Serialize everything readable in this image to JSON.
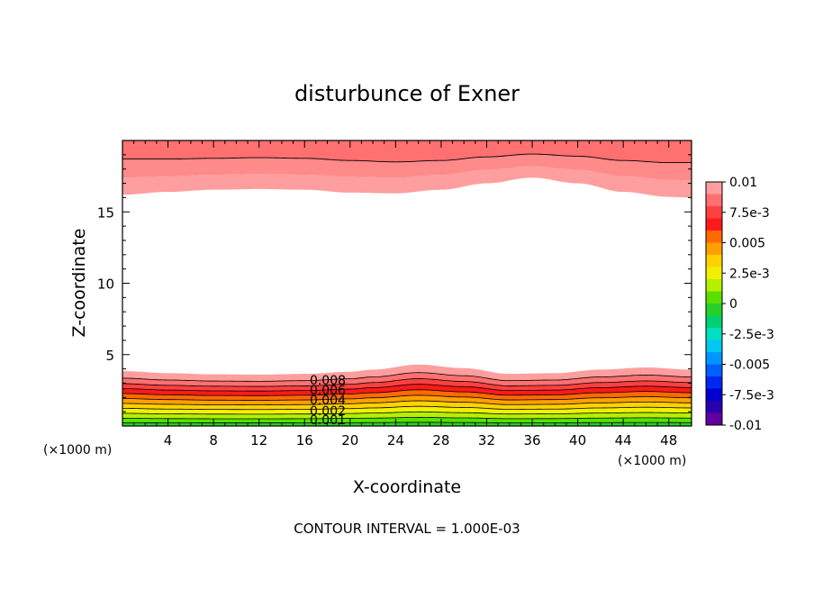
{
  "chart_data": {
    "type": "heatmap",
    "subtype": "filled-contour",
    "title": "disturbunce of Exner",
    "xlabel": "X-coordinate",
    "ylabel": "Z-coordinate",
    "x_unit_left": "(×1000 m)",
    "x_unit_right": "(×1000 m)",
    "xlim": [
      0,
      50
    ],
    "ylim": [
      0,
      20
    ],
    "x_ticks": [
      "4",
      "8",
      "12",
      "16",
      "20",
      "24",
      "28",
      "32",
      "36",
      "40",
      "44",
      "48"
    ],
    "y_ticks": [
      "5",
      "10",
      "15"
    ],
    "footer": "CONTOUR INTERVAL = 1.000E-03",
    "colorbar": {
      "labels": [
        "0.01",
        "7.5e-3",
        "0.005",
        "2.5e-3",
        "0",
        "-2.5e-3",
        "-0.005",
        "-7.5e-3",
        "-0.01"
      ],
      "levels": [
        {
          "min": 0.009,
          "max": 0.01,
          "color": "#ff9e9e"
        },
        {
          "min": 0.008,
          "max": 0.009,
          "color": "#ff7070"
        },
        {
          "min": 0.007,
          "max": 0.008,
          "color": "#ff4040"
        },
        {
          "min": 0.006,
          "max": 0.007,
          "color": "#ff1a1a"
        },
        {
          "min": 0.005,
          "max": 0.006,
          "color": "#ff6a00"
        },
        {
          "min": 0.004,
          "max": 0.005,
          "color": "#ffa000"
        },
        {
          "min": 0.003,
          "max": 0.004,
          "color": "#ffd200"
        },
        {
          "min": 0.002,
          "max": 0.003,
          "color": "#f0f000"
        },
        {
          "min": 0.001,
          "max": 0.002,
          "color": "#b4f000"
        },
        {
          "min": 0.0,
          "max": 0.001,
          "color": "#5ae000"
        },
        {
          "min": -0.001,
          "max": 0.0,
          "color": "#26d026"
        },
        {
          "min": -0.002,
          "max": -0.001,
          "color": "#00d070"
        },
        {
          "min": -0.003,
          "max": -0.002,
          "color": "#00e0c0"
        },
        {
          "min": -0.004,
          "max": -0.003,
          "color": "#00c8f0"
        },
        {
          "min": -0.005,
          "max": -0.004,
          "color": "#0096ff"
        },
        {
          "min": -0.006,
          "max": -0.005,
          "color": "#0060ff"
        },
        {
          "min": -0.007,
          "max": -0.006,
          "color": "#0028f0"
        },
        {
          "min": -0.008,
          "max": -0.007,
          "color": "#0000d0"
        },
        {
          "min": -0.009,
          "max": -0.008,
          "color": "#2800b0"
        },
        {
          "min": -0.01,
          "max": -0.009,
          "color": "#6000a0"
        }
      ]
    },
    "bottom_layer": {
      "labels": [
        "0.008",
        "0.006",
        "0.004",
        "0.002",
        "0.001"
      ],
      "profile_x": [
        0,
        4,
        8,
        12,
        16,
        20,
        22,
        26,
        30,
        34,
        38,
        42,
        46,
        50
      ],
      "profile_top_z": [
        3.85,
        3.7,
        3.62,
        3.6,
        3.65,
        3.8,
        3.95,
        4.3,
        4.05,
        3.65,
        3.7,
        3.95,
        4.1,
        3.95
      ],
      "bands": [
        {
          "value": 0.01,
          "z_frac": 1.0
        },
        {
          "value": 0.009,
          "z_frac": 0.87
        },
        {
          "value": 0.008,
          "z_frac": 0.77
        },
        {
          "value": 0.007,
          "z_frac": 0.68
        },
        {
          "value": 0.006,
          "z_frac": 0.59
        },
        {
          "value": 0.005,
          "z_frac": 0.5
        },
        {
          "value": 0.004,
          "z_frac": 0.41
        },
        {
          "value": 0.003,
          "z_frac": 0.32
        },
        {
          "value": 0.002,
          "z_frac": 0.23
        },
        {
          "value": 0.001,
          "z_frac": 0.14
        },
        {
          "value": 0.0,
          "z_frac": 0.06
        }
      ]
    },
    "top_layer": {
      "profile_x": [
        0,
        4,
        8,
        12,
        16,
        20,
        24,
        28,
        32,
        36,
        40,
        44,
        48,
        50
      ],
      "profile_bottom_z": [
        16.2,
        16.4,
        16.55,
        16.6,
        16.55,
        16.35,
        16.3,
        16.55,
        17.0,
        17.4,
        17.0,
        16.4,
        16.05,
        16.0
      ],
      "contour_z": [
        18.7,
        18.7,
        18.75,
        18.8,
        18.75,
        18.6,
        18.5,
        18.6,
        18.85,
        19.05,
        18.9,
        18.6,
        18.45,
        18.45
      ],
      "contour2_z": [
        17.4,
        17.5,
        17.6,
        17.65,
        17.6,
        17.45,
        17.4,
        17.6,
        17.95,
        18.2,
        17.95,
        17.5,
        17.25,
        17.2
      ],
      "bands": [
        {
          "value": 0.01,
          "color": "#ff7070"
        },
        {
          "value": 0.009,
          "color": "#ff8a8a"
        },
        {
          "value": 0.008,
          "color": "#ff9e9e"
        }
      ]
    }
  }
}
